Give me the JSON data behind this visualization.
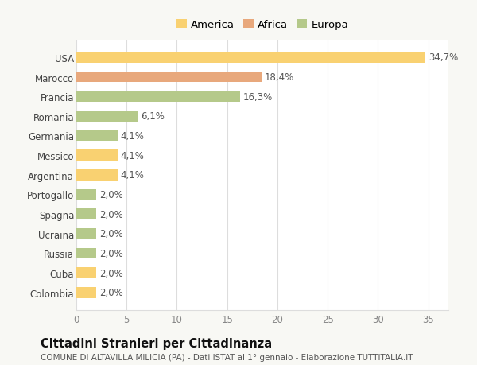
{
  "categories": [
    "Colombia",
    "Cuba",
    "Russia",
    "Ucraina",
    "Spagna",
    "Portogallo",
    "Argentina",
    "Messico",
    "Germania",
    "Romania",
    "Francia",
    "Marocco",
    "USA"
  ],
  "values": [
    2.0,
    2.0,
    2.0,
    2.0,
    2.0,
    2.0,
    4.1,
    4.1,
    4.1,
    6.1,
    16.3,
    18.4,
    34.7
  ],
  "colors": [
    "#f9d171",
    "#f9d171",
    "#b5c98a",
    "#b5c98a",
    "#b5c98a",
    "#b5c98a",
    "#f9d171",
    "#f9d171",
    "#b5c98a",
    "#b5c98a",
    "#b5c98a",
    "#e8a87c",
    "#f9d171"
  ],
  "labels": [
    "2,0%",
    "2,0%",
    "2,0%",
    "2,0%",
    "2,0%",
    "2,0%",
    "4,1%",
    "4,1%",
    "4,1%",
    "6,1%",
    "16,3%",
    "18,4%",
    "34,7%"
  ],
  "legend_labels": [
    "America",
    "Africa",
    "Europa"
  ],
  "legend_colors": [
    "#f9d171",
    "#e8a87c",
    "#b5c98a"
  ],
  "xlim": [
    0,
    37
  ],
  "xticks": [
    0,
    5,
    10,
    15,
    20,
    25,
    30,
    35
  ],
  "title": "Cittadini Stranieri per Cittadinanza",
  "subtitle": "COMUNE DI ALTAVILLA MILICIA (PA) - Dati ISTAT al 1° gennaio - Elaborazione TUTTITALIA.IT",
  "bg_color": "#f8f8f4",
  "plot_bg": "#ffffff",
  "grid_color": "#dddddd",
  "bar_height": 0.55,
  "label_fontsize": 8.5,
  "tick_fontsize": 8.5,
  "legend_fontsize": 9.5,
  "title_fontsize": 10.5,
  "subtitle_fontsize": 7.5
}
